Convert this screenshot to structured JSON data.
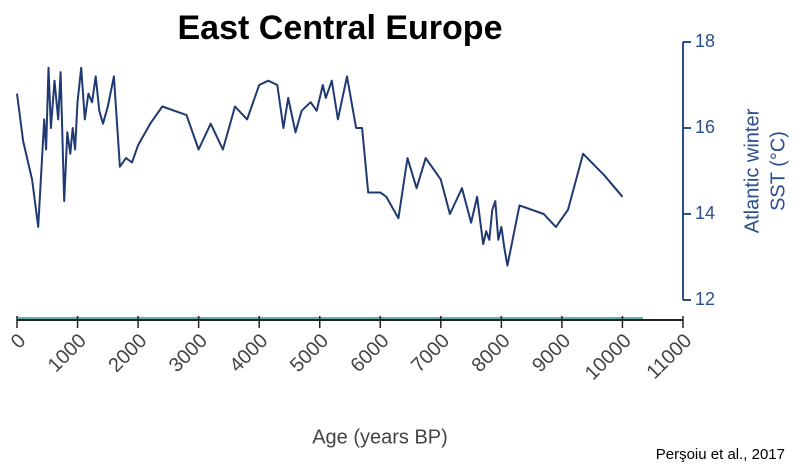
{
  "chart_data": {
    "type": "line",
    "title": "East Central Europe",
    "x_label": "Age (years BP)",
    "y_label": [
      "Atlantic winter",
      "SST (°C)"
    ],
    "source": "Perşoiu et al., 2017",
    "y_axis_side": "right",
    "xlim": [
      0,
      11000
    ],
    "xticks": [
      0,
      1000,
      2000,
      3000,
      4000,
      5000,
      6000,
      7000,
      8000,
      9000,
      10000,
      11000
    ],
    "ylim": [
      12,
      18
    ],
    "yticks": [
      12,
      14,
      16,
      18
    ],
    "series": [
      {
        "name": "Atlantic winter SST",
        "color": "#1f3a73",
        "x": [
          0,
          100,
          250,
          350,
          450,
          480,
          520,
          560,
          620,
          680,
          720,
          780,
          830,
          880,
          920,
          960,
          1000,
          1060,
          1120,
          1180,
          1240,
          1300,
          1360,
          1420,
          1500,
          1600,
          1700,
          1800,
          1900,
          2000,
          2200,
          2400,
          2800,
          3000,
          3200,
          3400,
          3600,
          3800,
          4000,
          4150,
          4300,
          4400,
          4480,
          4600,
          4700,
          4850,
          4950,
          5050,
          5100,
          5200,
          5300,
          5450,
          5600,
          5700,
          5800,
          6000,
          6100,
          6300,
          6450,
          6600,
          6750,
          6900,
          7000,
          7150,
          7350,
          7500,
          7600,
          7700,
          7750,
          7800,
          7850,
          7900,
          7950,
          8000,
          8050,
          8100,
          8300,
          8700,
          8900,
          9100,
          9350,
          9700,
          10000
        ],
        "values": [
          16.8,
          15.7,
          14.8,
          13.7,
          16.2,
          15.5,
          17.4,
          16.0,
          17.1,
          16.2,
          17.3,
          14.3,
          15.9,
          15.4,
          16.0,
          15.5,
          16.6,
          17.4,
          16.2,
          16.8,
          16.6,
          17.2,
          16.4,
          16.1,
          16.5,
          17.2,
          15.1,
          15.3,
          15.2,
          15.6,
          16.1,
          16.5,
          16.3,
          15.5,
          16.1,
          15.5,
          16.5,
          16.2,
          17.0,
          17.1,
          17.0,
          16.0,
          16.7,
          15.9,
          16.4,
          16.6,
          16.4,
          17.0,
          16.7,
          17.1,
          16.2,
          17.2,
          16.0,
          16.0,
          14.5,
          14.5,
          14.4,
          13.9,
          15.3,
          14.6,
          15.3,
          15.0,
          14.8,
          14.0,
          14.6,
          13.8,
          14.4,
          13.3,
          13.6,
          13.4,
          14.1,
          14.3,
          13.4,
          13.7,
          13.2,
          12.8,
          14.2,
          14.0,
          13.7,
          14.1,
          15.4,
          14.9,
          14.4
        ]
      }
    ]
  }
}
